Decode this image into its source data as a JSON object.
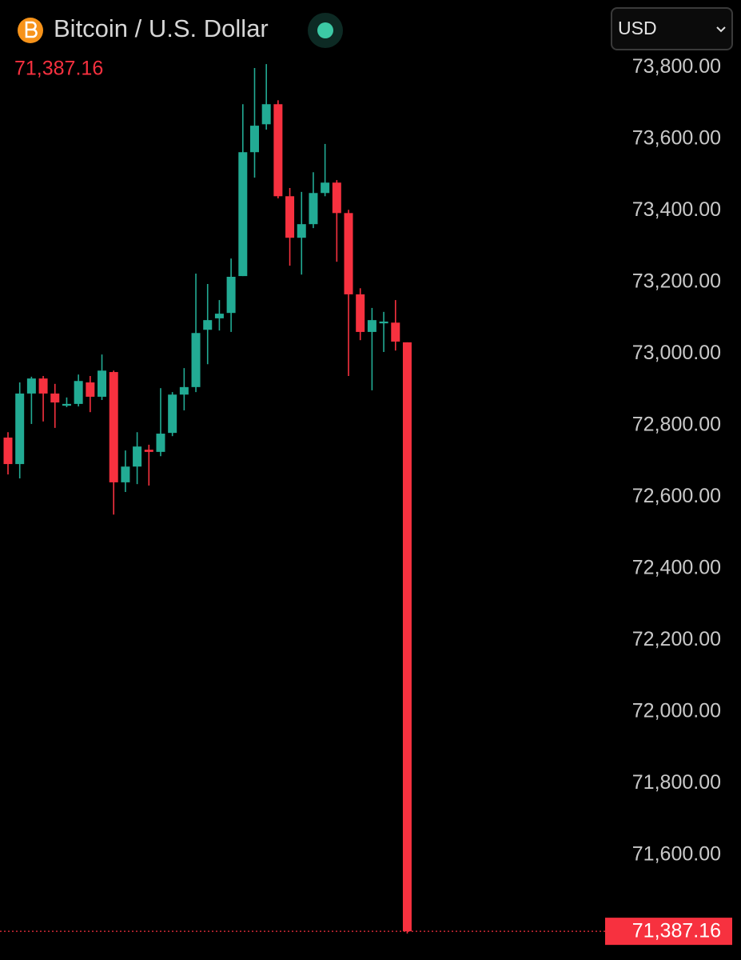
{
  "header": {
    "title": "Bitcoin / U.S. Dollar",
    "currency": "USD"
  },
  "chart_data": {
    "type": "candlestick",
    "up_color": "#22ab94",
    "down_color": "#f7313f",
    "open": [
      72766,
      72692,
      72889,
      72931,
      72889,
      72855,
      72860,
      72920,
      72880,
      72949,
      72641,
      72685,
      72732,
      72726,
      72779,
      72886,
      72907,
      73067,
      73099,
      73114,
      73217,
      73563,
      73641,
      73697,
      73440,
      73324,
      73362,
      73449,
      73478,
      73393,
      73166,
      73061,
      73085,
      73087,
      73032
    ],
    "high": [
      72781,
      72920,
      72936,
      72938,
      72916,
      72878,
      72942,
      72938,
      72998,
      72953,
      72730,
      72781,
      72746,
      72904,
      72893,
      72960,
      73224,
      73195,
      73150,
      73266,
      73697,
      73798,
      73809,
      73708,
      73463,
      73452,
      73507,
      73586,
      73485,
      73402,
      73183,
      73128,
      73117,
      73150,
      73032
    ],
    "low": [
      72663,
      72652,
      72804,
      72811,
      72793,
      72851,
      72853,
      72837,
      72871,
      72551,
      72614,
      72636,
      72632,
      72714,
      72770,
      72842,
      72893,
      72971,
      73065,
      73061,
      73217,
      73492,
      73626,
      73434,
      73246,
      73221,
      73351,
      73440,
      73257,
      72938,
      73038,
      72898,
      73005,
      73009,
      71381
    ],
    "close": [
      72692,
      72889,
      72931,
      72889,
      72864,
      72860,
      72924,
      72880,
      72953,
      72641,
      72685,
      72741,
      72726,
      72777,
      72886,
      72907,
      73058,
      73094,
      73112,
      73215,
      73563,
      73637,
      73697,
      73440,
      73324,
      73362,
      73449,
      73478,
      73393,
      73166,
      73061,
      73094,
      73090,
      73034,
      71387.16
    ],
    "ylim": [
      71307,
      73988
    ],
    "yticks": [
      {
        "value": 73800,
        "label": "73,800.00"
      },
      {
        "value": 73600,
        "label": "73,600.00"
      },
      {
        "value": 73400,
        "label": "73,400.00"
      },
      {
        "value": 73200,
        "label": "73,200.00"
      },
      {
        "value": 73000,
        "label": "73,000.00"
      },
      {
        "value": 72800,
        "label": "72,800.00"
      },
      {
        "value": 72600,
        "label": "72,600.00"
      },
      {
        "value": 72400,
        "label": "72,400.00"
      },
      {
        "value": 72200,
        "label": "72,200.00"
      },
      {
        "value": 72000,
        "label": "72,000.00"
      },
      {
        "value": 71800,
        "label": "71,800.00"
      },
      {
        "value": 71600,
        "label": "71,600.00"
      }
    ],
    "last_price": {
      "value": 71387.16,
      "label": "71,387.16"
    },
    "grid": false
  }
}
